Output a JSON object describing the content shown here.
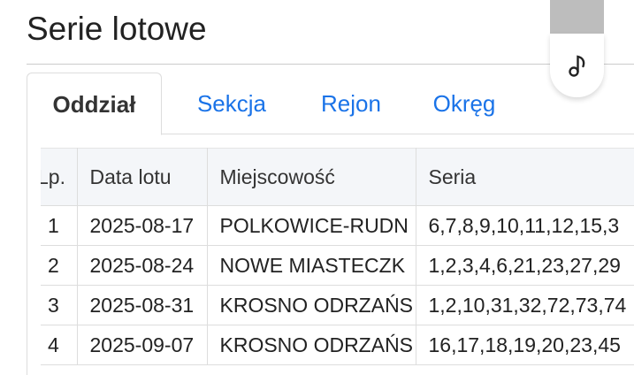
{
  "page": {
    "title": "Serie lotowe"
  },
  "tabs": [
    {
      "label": "Oddział",
      "active": true
    },
    {
      "label": "Sekcja"
    },
    {
      "label": "Rejon"
    },
    {
      "label": "Okręg"
    }
  ],
  "table": {
    "headers": [
      "Lp.",
      "Data lotu",
      "Miejscowość",
      "Seria"
    ],
    "rows": [
      [
        "1",
        "2025-08-17",
        "POLKOWICE-RUDN",
        "6,7,8,9,10,11,12,15,3"
      ],
      [
        "2",
        "2025-08-24",
        "NOWE MIASTECZK",
        "1,2,3,4,6,21,23,27,29"
      ],
      [
        "3",
        "2025-08-31",
        "KROSNO ODRZAŃS",
        "1,2,10,31,32,72,73,74"
      ],
      [
        "4",
        "2025-09-07",
        "KROSNO ODRZAŃS",
        "16,17,18,19,20,23,45"
      ]
    ]
  },
  "widget": {
    "icon": "music-note-icon"
  },
  "colors": {
    "accent": "#1a73e8",
    "header_bg": "#f4f6f9"
  }
}
